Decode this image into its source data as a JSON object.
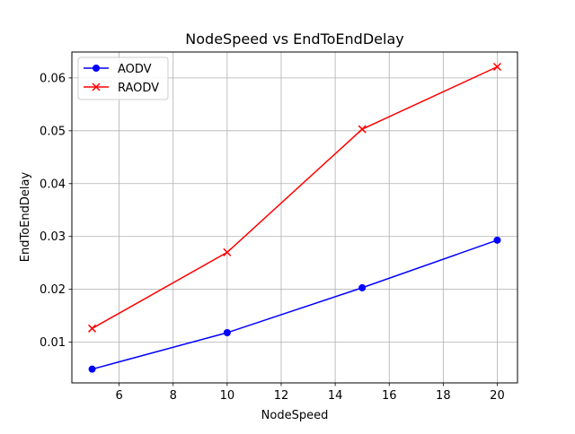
{
  "chart_data": {
    "type": "line",
    "title": "NodeSpeed vs EndToEndDelay",
    "xlabel": "NodeSpeed",
    "ylabel": "EndToEndDelay",
    "xlim": [
      4.25,
      20.75
    ],
    "ylim": [
      0.0023,
      0.0649
    ],
    "x_ticks": [
      6,
      8,
      10,
      12,
      14,
      16,
      18,
      20
    ],
    "x_tick_labels": [
      "6",
      "8",
      "10",
      "12",
      "14",
      "16",
      "18",
      "20"
    ],
    "y_ticks": [
      0.01,
      0.02,
      0.03,
      0.04,
      0.05,
      0.06
    ],
    "y_tick_labels": [
      "0.01",
      "0.02",
      "0.03",
      "0.04",
      "0.05",
      "0.06"
    ],
    "grid": true,
    "legend_position": "upper-left",
    "x": [
      5,
      10,
      15,
      20
    ],
    "series": [
      {
        "name": "AODV",
        "color": "#0000ff",
        "marker": "circle",
        "values": [
          0.0049,
          0.0118,
          0.0203,
          0.0293
        ]
      },
      {
        "name": "RAODV",
        "color": "#ff0000",
        "marker": "x",
        "values": [
          0.0126,
          0.027,
          0.0503,
          0.0621
        ]
      }
    ]
  }
}
